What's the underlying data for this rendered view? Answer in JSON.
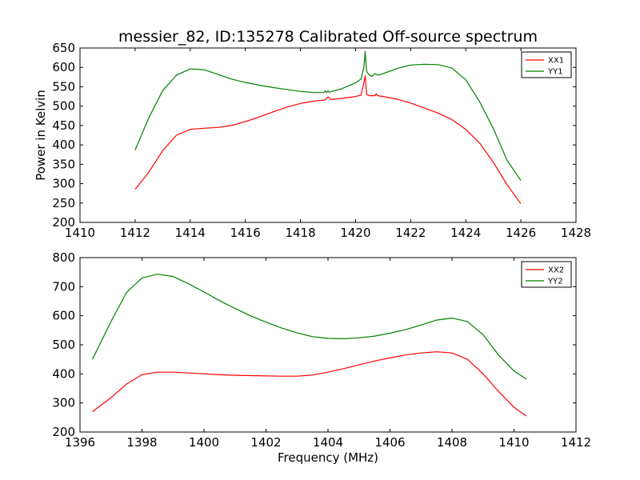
{
  "chart_data": [
    {
      "type": "line",
      "title": "messier_82, ID:135278 Calibrated Off-source spectrum",
      "xlabel": "",
      "ylabel": "Power in Kelvin",
      "xlim": [
        1410,
        1428
      ],
      "ylim": [
        200,
        650
      ],
      "xticks": [
        "1410",
        "1412",
        "1414",
        "1416",
        "1418",
        "1420",
        "1422",
        "1424",
        "1426",
        "1428"
      ],
      "yticks": [
        "200",
        "250",
        "300",
        "350",
        "400",
        "450",
        "500",
        "550",
        "600",
        "650"
      ],
      "legend": "top-right",
      "grid": false,
      "series": [
        {
          "name": "XX1",
          "color": "#ff0000",
          "x": [
            1412.0,
            1412.5,
            1413.0,
            1413.5,
            1414.0,
            1414.5,
            1415.0,
            1415.5,
            1416.0,
            1416.5,
            1417.0,
            1417.5,
            1418.0,
            1418.5,
            1418.9,
            1419.0,
            1419.1,
            1419.5,
            1420.0,
            1420.2,
            1420.3,
            1420.35,
            1420.4,
            1420.5,
            1420.7,
            1420.75,
            1420.8,
            1421.0,
            1421.5,
            1422.0,
            1422.5,
            1423.0,
            1423.5,
            1424.0,
            1424.5,
            1425.0,
            1425.5,
            1426.0
          ],
          "y": [
            285,
            330,
            385,
            425,
            440,
            443,
            445,
            450,
            460,
            472,
            485,
            497,
            507,
            513,
            516,
            524,
            517,
            520,
            525,
            528,
            560,
            578,
            530,
            527,
            527,
            532,
            527,
            525,
            518,
            508,
            495,
            482,
            465,
            440,
            405,
            355,
            297,
            248
          ]
        },
        {
          "name": "YY1",
          "color": "#008000",
          "x": [
            1412.0,
            1412.5,
            1413.0,
            1413.5,
            1414.0,
            1414.5,
            1415.0,
            1415.5,
            1416.0,
            1416.5,
            1417.0,
            1417.5,
            1418.0,
            1418.5,
            1418.85,
            1418.9,
            1418.95,
            1419.0,
            1419.05,
            1419.1,
            1419.5,
            1420.0,
            1420.2,
            1420.3,
            1420.35,
            1420.4,
            1420.5,
            1420.6,
            1420.7,
            1420.8,
            1421.0,
            1421.5,
            1422.0,
            1422.5,
            1423.0,
            1423.5,
            1424.0,
            1424.5,
            1425.0,
            1425.5,
            1426.0
          ],
          "y": [
            387,
            470,
            540,
            580,
            596,
            594,
            582,
            570,
            561,
            554,
            548,
            543,
            538,
            535,
            535,
            540,
            535,
            540,
            536,
            537,
            545,
            560,
            570,
            600,
            641,
            590,
            580,
            577,
            584,
            580,
            584,
            597,
            606,
            608,
            607,
            598,
            568,
            512,
            442,
            360,
            308
          ]
        }
      ]
    },
    {
      "type": "line",
      "title": "",
      "xlabel": "Frequency (MHz)",
      "ylabel": "",
      "xlim": [
        1396,
        1412
      ],
      "ylim": [
        200,
        800
      ],
      "xticks": [
        "1396",
        "1398",
        "1400",
        "1402",
        "1404",
        "1406",
        "1408",
        "1410",
        "1412"
      ],
      "yticks": [
        "200",
        "300",
        "400",
        "500",
        "600",
        "700",
        "800"
      ],
      "legend": "top-right",
      "grid": false,
      "series": [
        {
          "name": "XX2",
          "color": "#ff0000",
          "x": [
            1396.4,
            1397.0,
            1397.5,
            1398.0,
            1398.5,
            1399.0,
            1399.5,
            1400.0,
            1400.5,
            1401.0,
            1401.5,
            1402.0,
            1402.5,
            1403.0,
            1403.5,
            1404.0,
            1404.5,
            1405.0,
            1405.5,
            1406.0,
            1406.5,
            1407.0,
            1407.5,
            1408.0,
            1408.5,
            1409.0,
            1409.5,
            1410.0,
            1410.4
          ],
          "y": [
            270,
            318,
            365,
            397,
            406,
            406,
            403,
            400,
            397,
            395,
            394,
            393,
            392,
            392,
            396,
            406,
            418,
            431,
            444,
            455,
            465,
            472,
            476,
            472,
            450,
            400,
            340,
            285,
            255
          ]
        },
        {
          "name": "YY2",
          "color": "#008000",
          "x": [
            1396.4,
            1397.0,
            1397.5,
            1398.0,
            1398.5,
            1399.0,
            1399.5,
            1400.0,
            1400.5,
            1401.0,
            1401.5,
            1402.0,
            1402.5,
            1403.0,
            1403.5,
            1404.0,
            1404.5,
            1405.0,
            1405.5,
            1406.0,
            1406.5,
            1407.0,
            1407.5,
            1408.0,
            1408.5,
            1409.0,
            1409.5,
            1410.0,
            1410.4
          ],
          "y": [
            450,
            580,
            680,
            730,
            743,
            735,
            710,
            682,
            652,
            625,
            600,
            578,
            558,
            541,
            528,
            522,
            521,
            524,
            530,
            540,
            552,
            568,
            585,
            592,
            580,
            535,
            465,
            410,
            382
          ]
        }
      ]
    }
  ]
}
